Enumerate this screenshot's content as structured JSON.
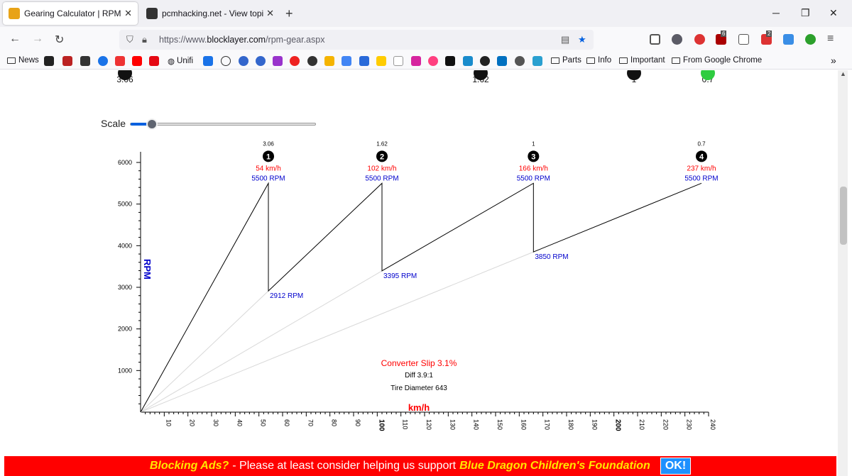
{
  "tabs": [
    {
      "title": "Gearing Calculator | RPM and T",
      "active": true,
      "color": "#e8a317"
    },
    {
      "title": "pcmhacking.net - View topic - \\",
      "active": false,
      "color": "#333333"
    }
  ],
  "url": {
    "prefix": "https://www.",
    "domain": "blocklayer.com",
    "path": "/rpm-gear.aspx"
  },
  "bookmarks": [
    {
      "label": "News",
      "folder": true
    },
    {
      "label": "Unifi",
      "folder": false
    },
    {
      "label": "Parts",
      "folder": true
    },
    {
      "label": "Info",
      "folder": true
    },
    {
      "label": "Important",
      "folder": true
    },
    {
      "label": "From Google Chrome",
      "folder": true
    }
  ],
  "extensions": {
    "badges": [
      "6",
      "2"
    ]
  },
  "top_gears": [
    "3.06",
    "1.62",
    "1",
    "0.7"
  ],
  "scale": {
    "label": "Scale",
    "value": 0.12
  },
  "chart_data": {
    "type": "line",
    "xlabel": "km/h",
    "ylabel": "RPM",
    "xlim": [
      0,
      240
    ],
    "ylim": [
      0,
      6000
    ],
    "x_ticks": [
      10,
      20,
      30,
      40,
      50,
      60,
      70,
      80,
      90,
      100,
      110,
      120,
      130,
      140,
      150,
      160,
      170,
      180,
      190,
      200,
      210,
      220,
      230,
      240
    ],
    "y_ticks": [
      1000,
      2000,
      3000,
      4000,
      5000,
      6000
    ],
    "gears": [
      {
        "number": "1",
        "ratio": "3.06",
        "shift_speed_label": "54 km/h",
        "shift_rpm_label": "5500 RPM",
        "speed": 54,
        "rpm": 5500,
        "drop_rpm": 2912,
        "drop_label": "2912 RPM"
      },
      {
        "number": "2",
        "ratio": "1.62",
        "shift_speed_label": "102 km/h",
        "shift_rpm_label": "5500 RPM",
        "speed": 102,
        "rpm": 5500,
        "drop_rpm": 3395,
        "drop_label": "3395 RPM"
      },
      {
        "number": "3",
        "ratio": "1",
        "shift_speed_label": "166 km/h",
        "shift_rpm_label": "5500 RPM",
        "speed": 166,
        "rpm": 5500,
        "drop_rpm": 3850,
        "drop_label": "3850 RPM"
      },
      {
        "number": "4",
        "ratio": "0.7",
        "shift_speed_label": "237 km/h",
        "shift_rpm_label": "5500 RPM",
        "speed": 237,
        "rpm": 5500
      }
    ],
    "info": {
      "slip": "Converter Slip 3.1%",
      "diff": "Diff 3.9:1",
      "tire": "Tire Diameter 643"
    }
  },
  "ad": {
    "lead": "Blocking Ads?",
    "middle": "- Please at least consider helping us support",
    "org": "Blue Dragon Children's Foundation",
    "button": "OK!"
  },
  "colors": {
    "red": "#ff0000",
    "blue": "#0000cc",
    "ad_yellow": "#ffe600",
    "ok_blue": "#1e90ff"
  }
}
